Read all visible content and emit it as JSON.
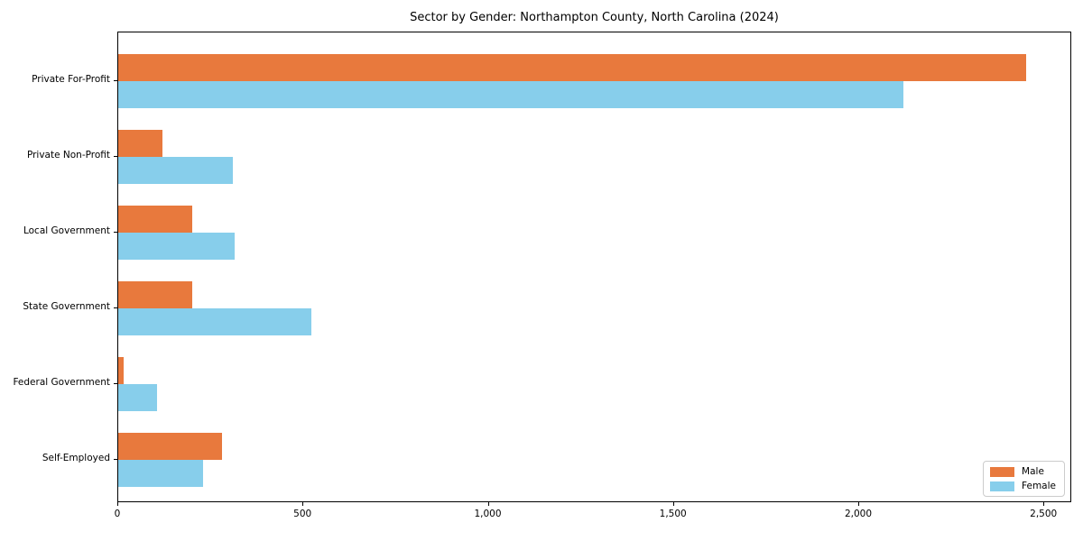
{
  "chart_data": {
    "type": "bar",
    "orientation": "horizontal",
    "title": "Sector by Gender: Northampton County, North Carolina (2024)",
    "categories": [
      "Private For-Profit",
      "Private Non-Profit",
      "Local Government",
      "State Government",
      "Federal Government",
      "Self-Employed"
    ],
    "series": [
      {
        "name": "Male",
        "color": "#E8793D",
        "values": [
          2450,
          120,
          200,
          200,
          15,
          280
        ]
      },
      {
        "name": "Female",
        "color": "#87CEEB",
        "values": [
          2120,
          310,
          315,
          520,
          105,
          230
        ]
      }
    ],
    "xlim": [
      0,
      2575
    ],
    "xticks": {
      "values": [
        0,
        500,
        1000,
        1500,
        2000,
        2500
      ],
      "labels": [
        "0",
        "500",
        "1,000",
        "1,500",
        "2,000",
        "2,500"
      ]
    },
    "ylabel": "",
    "xlabel": "",
    "grid": false,
    "legend": {
      "position": "lower right",
      "entries": [
        {
          "label": "Male",
          "color": "#E8793D"
        },
        {
          "label": "Female",
          "color": "#87CEEB"
        }
      ]
    }
  }
}
